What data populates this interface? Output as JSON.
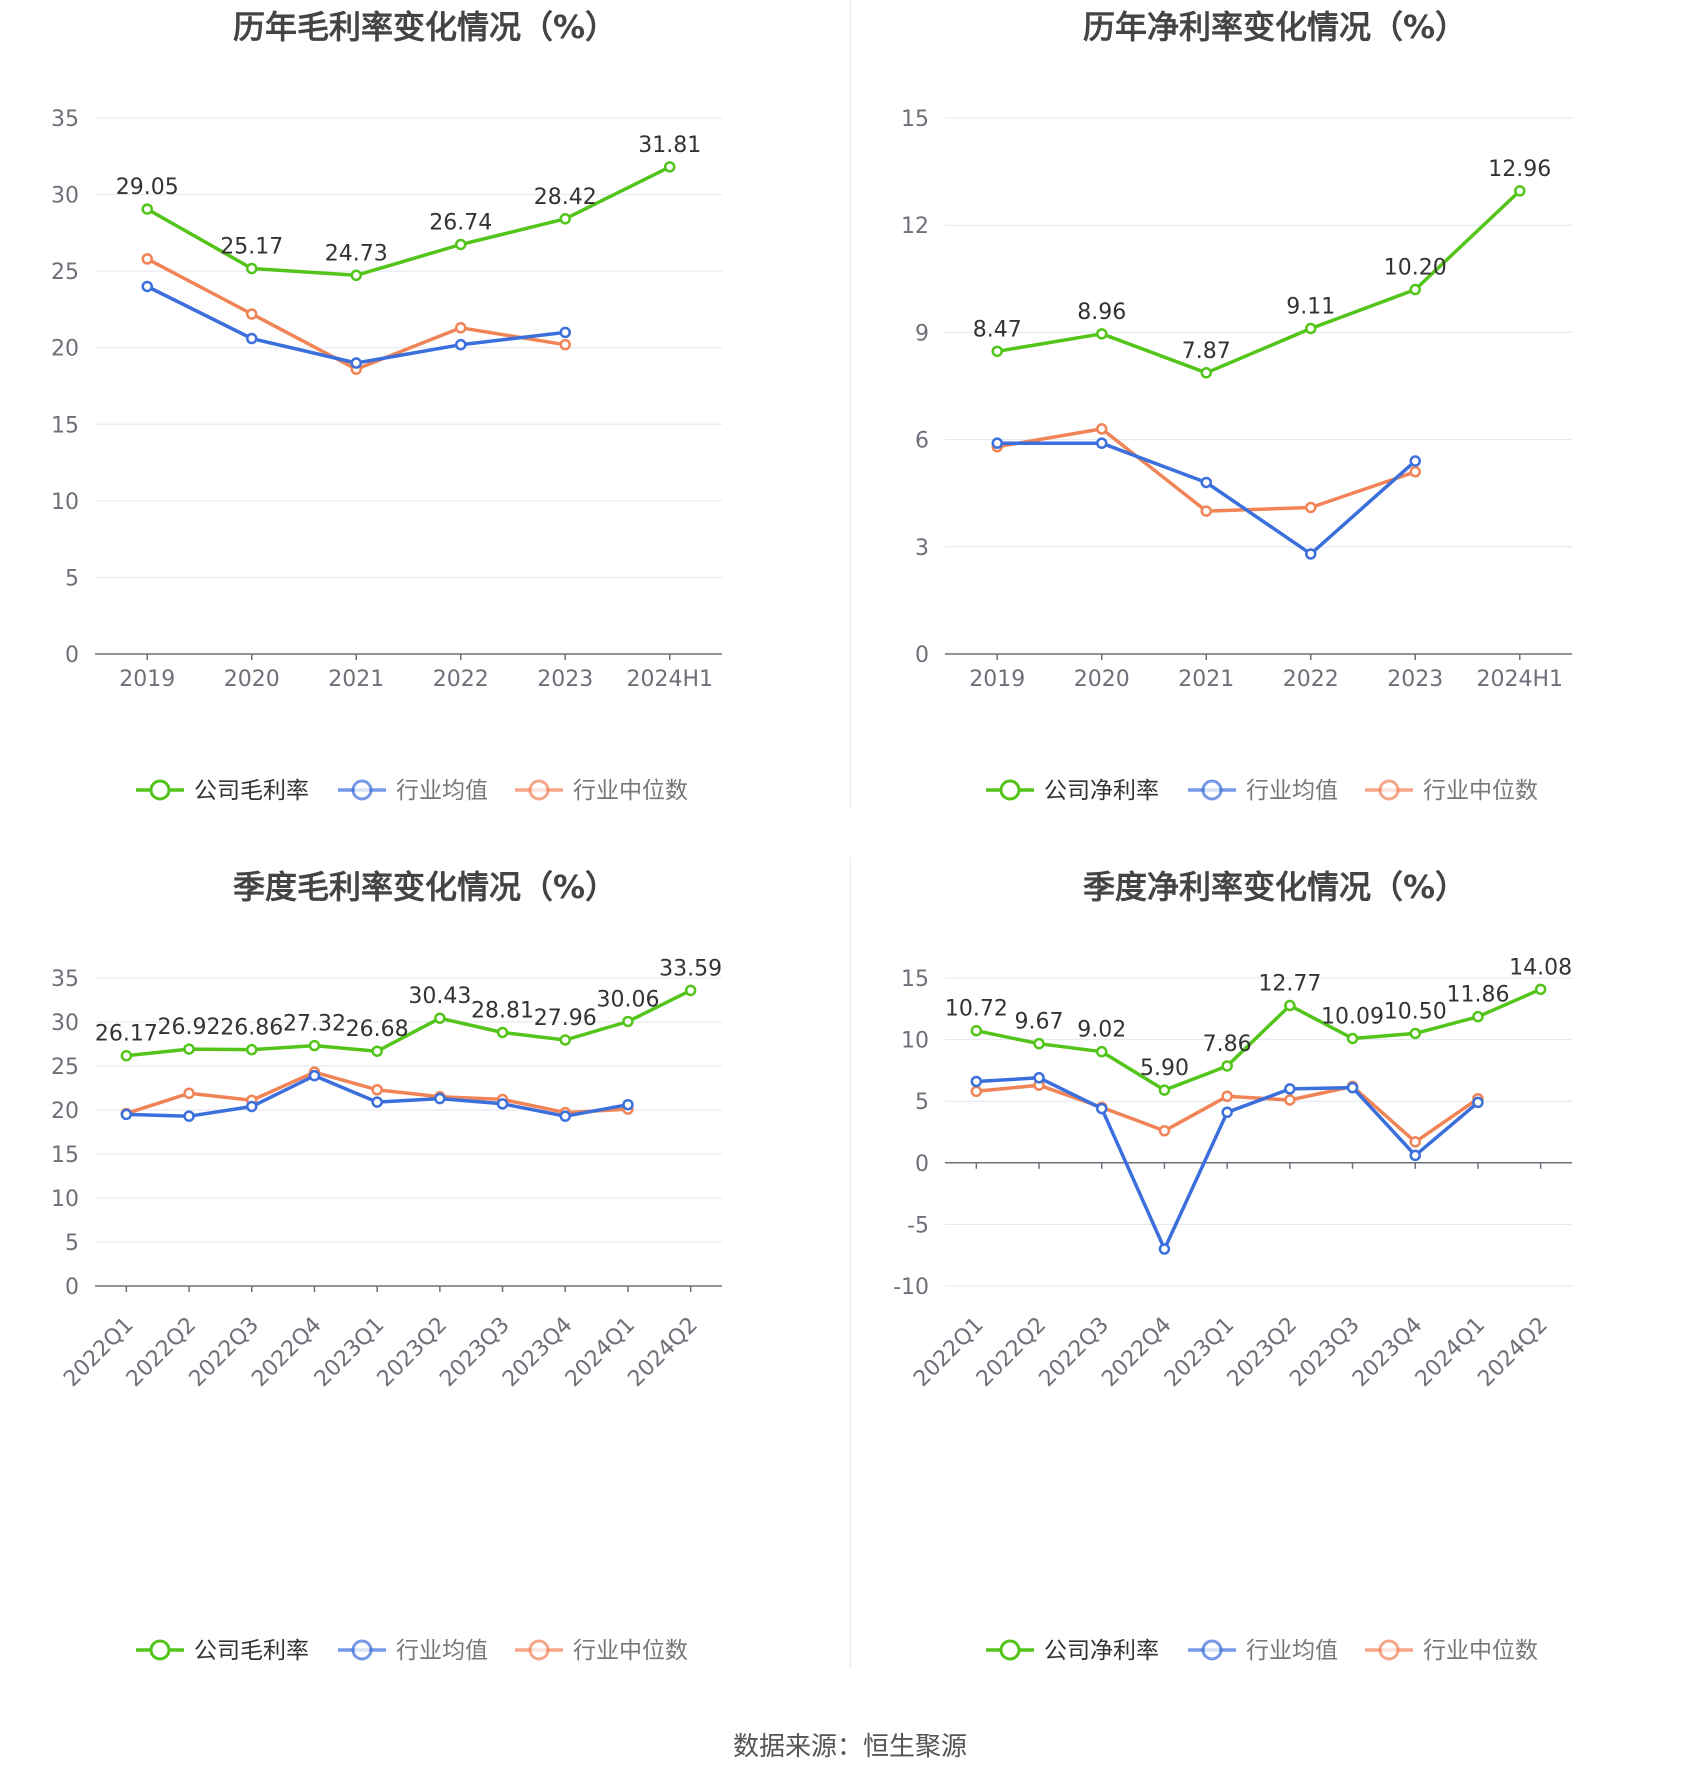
{
  "source_text": "数据来源：恒生聚源",
  "legend_colors": {
    "green": "#52c41a",
    "blue": "#3b6fdc",
    "orange": "#f08457"
  },
  "chart_data": [
    {
      "type": "line",
      "title": "历年毛利率变化情况（%）",
      "categories": [
        "2019",
        "2020",
        "2021",
        "2022",
        "2023",
        "2024H1"
      ],
      "ylim": [
        0,
        35
      ],
      "yticks": [
        0,
        5,
        10,
        15,
        20,
        25,
        30,
        35
      ],
      "ytick_labels": [
        "0",
        "5",
        "10",
        "15",
        "20",
        "25",
        "30",
        "35"
      ],
      "grid": true,
      "legend_position": "bottom",
      "series": [
        {
          "name": "公司毛利率",
          "color": "#52c41a",
          "labels": true,
          "values": [
            29.05,
            25.17,
            24.73,
            26.74,
            28.42,
            31.81
          ],
          "value_labels": [
            "29.05",
            "25.17",
            "24.73",
            "26.74",
            "28.42",
            "31.81"
          ]
        },
        {
          "name": "行业均值",
          "color": "#3b6fdc",
          "values": [
            24.0,
            20.6,
            19.0,
            20.2,
            21.0,
            null
          ]
        },
        {
          "name": "行业中位数",
          "color": "#f08457",
          "values": [
            25.8,
            22.2,
            18.6,
            21.3,
            20.2,
            null
          ]
        }
      ]
    },
    {
      "type": "line",
      "title": "历年净利率变化情况（%）",
      "categories": [
        "2019",
        "2020",
        "2021",
        "2022",
        "2023",
        "2024H1"
      ],
      "ylim": [
        0,
        15
      ],
      "yticks": [
        0,
        3,
        6,
        9,
        12,
        15
      ],
      "ytick_labels": [
        "0",
        "3",
        "6",
        "9",
        "12",
        "15"
      ],
      "grid": true,
      "legend_position": "bottom",
      "series": [
        {
          "name": "公司净利率",
          "color": "#52c41a",
          "labels": true,
          "values": [
            8.47,
            8.96,
            7.87,
            9.11,
            10.2,
            12.96
          ],
          "value_labels": [
            "8.47",
            "8.96",
            "7.87",
            "9.11",
            "10.20",
            "12.96"
          ]
        },
        {
          "name": "行业均值",
          "color": "#3b6fdc",
          "values": [
            5.9,
            5.9,
            4.8,
            2.8,
            5.4,
            null
          ]
        },
        {
          "name": "行业中位数",
          "color": "#f08457",
          "values": [
            5.8,
            6.3,
            4.0,
            4.1,
            5.1,
            null
          ]
        }
      ]
    },
    {
      "type": "line",
      "title": "季度毛利率变化情况（%）",
      "categories": [
        "2022Q1",
        "2022Q2",
        "2022Q3",
        "2022Q4",
        "2023Q1",
        "2023Q2",
        "2023Q3",
        "2023Q4",
        "2024Q1",
        "2024Q2"
      ],
      "ylim": [
        0,
        35
      ],
      "yticks": [
        0,
        5,
        10,
        15,
        20,
        25,
        30,
        35
      ],
      "ytick_labels": [
        "0",
        "5",
        "10",
        "15",
        "20",
        "25",
        "30",
        "35"
      ],
      "grid": true,
      "legend_position": "bottom",
      "series": [
        {
          "name": "公司毛利率",
          "color": "#52c41a",
          "labels": true,
          "values": [
            26.17,
            26.92,
            26.86,
            27.32,
            26.68,
            30.43,
            28.81,
            27.96,
            30.06,
            33.59
          ],
          "value_labels": [
            "26.17",
            "26.92",
            "26.86",
            "27.32",
            "26.68",
            "30.43",
            "28.81",
            "27.96",
            "30.06",
            "33.59"
          ]
        },
        {
          "name": "行业均值",
          "color": "#3b6fdc",
          "values": [
            19.5,
            19.3,
            20.4,
            23.9,
            20.9,
            21.3,
            20.7,
            19.3,
            20.6,
            null
          ]
        },
        {
          "name": "行业中位数",
          "color": "#f08457",
          "values": [
            19.6,
            21.9,
            21.1,
            24.3,
            22.3,
            21.5,
            21.2,
            19.7,
            20.1,
            null
          ]
        }
      ]
    },
    {
      "type": "line",
      "title": "季度净利率变化情况（%）",
      "categories": [
        "2022Q1",
        "2022Q2",
        "2022Q3",
        "2022Q4",
        "2023Q1",
        "2023Q2",
        "2023Q3",
        "2023Q4",
        "2024Q1",
        "2024Q2"
      ],
      "ylim": [
        -10,
        15
      ],
      "yticks": [
        -10,
        -5,
        0,
        5,
        10,
        15
      ],
      "ytick_labels": [
        "-10",
        "-5",
        "0",
        "5",
        "10",
        "15"
      ],
      "grid": true,
      "legend_position": "bottom",
      "series": [
        {
          "name": "公司净利率",
          "color": "#52c41a",
          "labels": true,
          "values": [
            10.72,
            9.67,
            9.02,
            5.9,
            7.86,
            12.77,
            10.09,
            10.5,
            11.86,
            14.08
          ],
          "value_labels": [
            "10.72",
            "9.67",
            "9.02",
            "5.90",
            "7.86",
            "12.77",
            "10.09",
            "10.50",
            "11.86",
            "14.08"
          ]
        },
        {
          "name": "行业均值",
          "color": "#3b6fdc",
          "values": [
            6.6,
            6.9,
            4.4,
            -7.0,
            4.1,
            6.0,
            6.1,
            0.6,
            4.9,
            null
          ]
        },
        {
          "name": "行业中位数",
          "color": "#f08457",
          "values": [
            5.8,
            6.3,
            4.5,
            2.6,
            5.4,
            5.1,
            6.2,
            1.7,
            5.2,
            null
          ]
        }
      ]
    }
  ]
}
